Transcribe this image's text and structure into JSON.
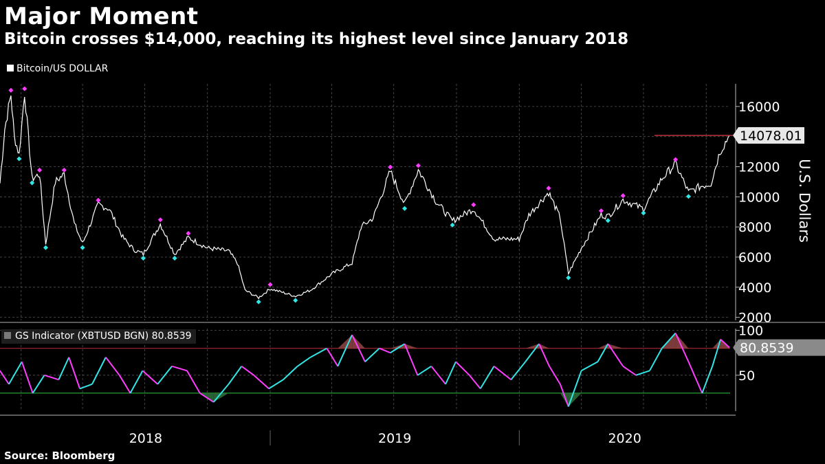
{
  "title": "Major Moment",
  "subtitle": "Bitcoin crosses $14,000, reaching its highest level since January 2018",
  "source": "Source: Bloomberg",
  "colors": {
    "background": "#000000",
    "price": "#ffffff",
    "high_marker": "#ff3cff",
    "low_marker": "#33e6e6",
    "upper_threshold": "#c0303a",
    "lower_threshold": "#2ecc40",
    "indicator_up": "#33e6e6",
    "indicator_down": "#ff3cff",
    "fill": "#9a4a4a",
    "grid": "#555555",
    "last_value_box": "#e8e8e8",
    "indicator_box": "#8a8a8a"
  },
  "chart_data": [
    {
      "type": "line",
      "legend": "Bitcoin/US DOLLAR",
      "ylabel": "U.S. Dollars",
      "ylim": [
        1800,
        17500
      ],
      "yticks": [
        2000,
        4000,
        6000,
        8000,
        10000,
        12000,
        14000,
        16000
      ],
      "xlabels": [
        "2018",
        "2019",
        "2020"
      ],
      "xlim": [
        "2017-12-01",
        "2020-11-05"
      ],
      "grid": true,
      "last_value": "14078.01",
      "reference_level": 14078.01,
      "series": [
        {
          "x": [
            "2017-12-01",
            "2017-12-08",
            "2017-12-17",
            "2017-12-22",
            "2017-12-29",
            "2018-01-06",
            "2018-01-17",
            "2018-01-28",
            "2018-02-06",
            "2018-02-20",
            "2018-03-05",
            "2018-03-20",
            "2018-04-01",
            "2018-04-24",
            "2018-05-10",
            "2018-05-30",
            "2018-06-15",
            "2018-06-29",
            "2018-07-24",
            "2018-08-14",
            "2018-09-03",
            "2018-10-01",
            "2018-11-01",
            "2018-11-14",
            "2018-11-25",
            "2018-12-15",
            "2019-01-01",
            "2019-02-07",
            "2019-03-01",
            "2019-04-02",
            "2019-05-01",
            "2019-05-14",
            "2019-06-01",
            "2019-06-26",
            "2019-07-17",
            "2019-08-06",
            "2019-09-01",
            "2019-09-25",
            "2019-10-26",
            "2019-11-25",
            "2020-01-01",
            "2020-01-15",
            "2020-02-13",
            "2020-03-01",
            "2020-03-13",
            "2020-04-01",
            "2020-04-30",
            "2020-05-10",
            "2020-06-01",
            "2020-07-01",
            "2020-07-28",
            "2020-08-17",
            "2020-09-05",
            "2020-09-23",
            "2020-10-08",
            "2020-10-21",
            "2020-11-04"
          ],
          "y": [
            10900,
            14500,
            16800,
            14000,
            12800,
            16900,
            11200,
            11500,
            6900,
            11000,
            11500,
            8200,
            6900,
            9500,
            9200,
            7300,
            6500,
            6200,
            8200,
            6200,
            7300,
            6600,
            6400,
            5600,
            3800,
            3300,
            3900,
            3400,
            3800,
            4900,
            5600,
            8000,
            8600,
            11700,
            9500,
            11800,
            9700,
            8400,
            9200,
            7200,
            7200,
            8800,
            10300,
            8600,
            4900,
            6600,
            8800,
            8700,
            9800,
            9200,
            11200,
            12200,
            10300,
            10700,
            10900,
            13000,
            14078
          ]
        }
      ]
    },
    {
      "type": "line",
      "legend": "GS Indicator (XBTUSD BGN) 80.8539",
      "ylim": [
        10,
        102
      ],
      "yticks": [
        50,
        100
      ],
      "upper_threshold": 80,
      "lower_threshold": 30,
      "last_value": "80.8539",
      "series": [
        {
          "x": [
            "2017-12-01",
            "2017-12-14",
            "2018-01-02",
            "2018-01-18",
            "2018-02-04",
            "2018-02-25",
            "2018-03-12",
            "2018-03-28",
            "2018-04-15",
            "2018-05-05",
            "2018-05-25",
            "2018-06-10",
            "2018-06-28",
            "2018-07-20",
            "2018-08-10",
            "2018-09-01",
            "2018-09-20",
            "2018-10-10",
            "2018-11-01",
            "2018-11-20",
            "2018-12-08",
            "2018-12-30",
            "2019-01-20",
            "2019-02-10",
            "2019-03-01",
            "2019-03-25",
            "2019-04-10",
            "2019-05-01",
            "2019-05-20",
            "2019-06-10",
            "2019-06-26",
            "2019-07-17",
            "2019-08-05",
            "2019-08-25",
            "2019-09-15",
            "2019-09-30",
            "2019-10-20",
            "2019-11-05",
            "2019-11-25",
            "2019-12-20",
            "2020-01-10",
            "2020-01-30",
            "2020-02-14",
            "2020-03-01",
            "2020-03-13",
            "2020-04-01",
            "2020-04-25",
            "2020-05-10",
            "2020-06-01",
            "2020-06-20",
            "2020-07-10",
            "2020-07-28",
            "2020-08-17",
            "2020-09-05",
            "2020-09-25",
            "2020-10-10",
            "2020-10-22",
            "2020-11-04"
          ],
          "y": [
            55,
            40,
            65,
            30,
            50,
            45,
            70,
            35,
            40,
            70,
            50,
            30,
            55,
            40,
            60,
            55,
            30,
            20,
            40,
            60,
            50,
            35,
            45,
            60,
            70,
            80,
            60,
            95,
            65,
            80,
            75,
            85,
            50,
            60,
            40,
            65,
            50,
            35,
            60,
            45,
            65,
            85,
            60,
            40,
            15,
            55,
            65,
            85,
            60,
            50,
            55,
            80,
            97,
            65,
            30,
            60,
            90,
            80.85
          ]
        }
      ]
    }
  ]
}
